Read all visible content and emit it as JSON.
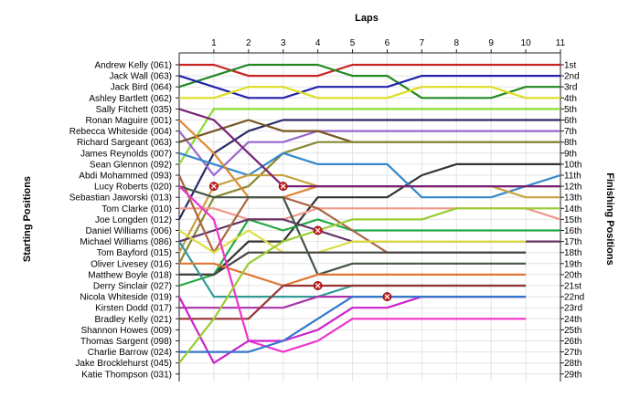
{
  "chart_data": {
    "type": "line",
    "top_axis_label": "Laps",
    "left_axis_label": "Starting Positions",
    "right_axis_label": "Finishing Positions",
    "laps": [
      1,
      2,
      3,
      4,
      5,
      6,
      7,
      8,
      9,
      10,
      11
    ],
    "x_range": [
      0,
      11
    ],
    "y_range": [
      1,
      29
    ],
    "grid": true,
    "starting_order": [
      "Andrew Kelly (061)",
      "Jack Wall (063)",
      "Jack Bird (064)",
      "Ashley Bartlett (062)",
      "Sally Fitchett (035)",
      "Ronan Maguire (001)",
      "Rebecca Whiteside (004)",
      "Richard Sargeant (063)",
      "James Reynolds (007)",
      "Sean Glennon (092)",
      "Abdi Mohammed (093)",
      "Lucy Roberts (020)",
      "Sebastian Jaworski (013)",
      "Tom Clarke (010)",
      "Joe Longden (012)",
      "Daniel Williams (006)",
      "Michael Williams (086)",
      "Tom Bayford (015)",
      "Oliver Livesey (016)",
      "Matthew Boyle (018)",
      "Derry Sinclair (027)",
      "Nicola Whiteside (019)",
      "Kirsten Dodd (017)",
      "Bradley Kelly (021)",
      "Shannon Howes (009)",
      "Thomas Sargent (098)",
      "Charlie Barrow (024)",
      "Jake Brocklehurst (045)",
      "Katie Thompson (031)"
    ],
    "finishing_labels": [
      "1st",
      "2nd",
      "3rd",
      "4th",
      "5th",
      "6th",
      "7th",
      "8th",
      "9th",
      "10th",
      "11th",
      "12th",
      "13th",
      "14th",
      "15th",
      "16th",
      "17th",
      "18th",
      "19th",
      "20th",
      "21st",
      "22nd",
      "23rd",
      "24th",
      "25th",
      "26th",
      "27th",
      "28th",
      "29th"
    ],
    "series": [
      {
        "color": "#cc2222",
        "positions": [
          1,
          1,
          2,
          2,
          2,
          1,
          1,
          1,
          1,
          1,
          1,
          1
        ]
      },
      {
        "color": "#228822",
        "positions": [
          3,
          2,
          1,
          1,
          1,
          2,
          2,
          4,
          4,
          4,
          3,
          3
        ]
      },
      {
        "color": "#2222aa",
        "positions": [
          2,
          3,
          4,
          4,
          3,
          3,
          3,
          2,
          2,
          2,
          2,
          2
        ]
      },
      {
        "color": "#dddd22",
        "positions": [
          4,
          4,
          3,
          3,
          4,
          4,
          4,
          3,
          3,
          3,
          4,
          4
        ]
      },
      {
        "color": "#88dd33",
        "positions": [
          10,
          5,
          5,
          5,
          5,
          5,
          5,
          5,
          5,
          5,
          5,
          5
        ]
      },
      {
        "color": "#2a2a66",
        "positions": [
          15,
          9,
          7,
          6,
          6,
          6,
          6,
          6,
          6,
          6,
          6,
          6
        ]
      },
      {
        "color": "#9966cc",
        "positions": [
          7,
          11,
          8,
          8,
          7,
          7,
          7,
          7,
          7,
          7,
          7,
          7
        ]
      },
      {
        "color": "#775522",
        "positions": [
          8,
          7,
          6,
          7,
          7,
          8,
          8,
          8,
          8,
          8,
          8,
          8
        ]
      },
      {
        "color": "#888833",
        "positions": [
          19,
          13,
          12,
          9,
          8,
          8,
          8,
          8,
          8,
          8,
          8,
          8
        ]
      },
      {
        "color": "#333333",
        "positions": [
          20,
          20,
          17,
          17,
          13,
          13,
          13,
          11,
          10,
          10,
          10,
          10
        ]
      },
      {
        "color": "#3388cc",
        "positions": [
          9,
          10,
          11,
          9,
          10,
          10,
          10,
          13,
          13,
          13,
          12,
          11
        ]
      },
      {
        "color": "#dd8833",
        "positions": [
          6,
          9,
          13,
          13,
          12,
          12,
          12,
          12,
          12,
          12,
          12,
          12
        ]
      },
      {
        "color": "#c8a040",
        "positions": [
          18,
          12,
          11,
          11,
          12,
          12,
          12,
          12,
          12,
          12,
          13,
          13
        ]
      },
      {
        "color": "#772277",
        "positions": [
          5,
          6,
          9,
          12,
          12,
          12,
          12,
          12,
          12,
          12,
          12,
          12
        ]
      },
      {
        "color": "#ee9988",
        "positions": [
          14,
          14,
          15,
          15,
          14,
          14,
          14,
          14,
          14,
          14,
          14,
          15
        ]
      },
      {
        "color": "#22aa44",
        "positions": [
          21,
          20,
          15,
          16,
          15,
          16,
          16,
          16,
          16,
          16,
          16,
          16
        ]
      },
      {
        "color": "#663366",
        "positions": [
          17,
          16,
          15,
          15,
          16,
          17,
          17,
          17,
          17,
          17,
          17,
          17
        ]
      },
      {
        "color": "#aa6644",
        "positions": [
          11,
          18,
          13,
          13,
          14,
          16,
          18,
          18,
          18,
          18,
          18
        ]
      },
      {
        "color": "#dddd44",
        "positions": [
          16,
          18,
          16,
          18,
          18,
          17,
          17,
          17,
          17,
          17,
          17
        ]
      },
      {
        "color": "#444444",
        "positions": [
          20,
          20,
          18,
          18,
          18,
          18,
          18,
          18,
          18,
          18,
          18
        ]
      },
      {
        "color": "#445544",
        "positions": [
          12,
          13,
          13,
          13,
          20,
          19,
          19,
          19,
          19,
          19,
          19
        ]
      },
      {
        "color": "#339999",
        "positions": [
          17,
          22,
          22,
          22,
          22,
          21,
          21,
          21,
          21,
          21,
          21
        ]
      },
      {
        "color": "#dd7733",
        "positions": [
          19,
          19,
          20,
          21,
          20,
          20,
          20,
          20,
          20,
          20,
          20
        ]
      },
      {
        "color": "#aa33aa",
        "positions": [
          23,
          23,
          23,
          23,
          22,
          22,
          22,
          22,
          22,
          22,
          22
        ]
      },
      {
        "color": "#993333",
        "positions": [
          24,
          24,
          24,
          21,
          21,
          21,
          21,
          21,
          21,
          21,
          21
        ]
      },
      {
        "color": "#ee33cc",
        "positions": [
          12,
          15,
          26,
          27,
          26,
          24,
          24,
          24,
          24,
          24,
          24
        ]
      },
      {
        "color": "#cc22cc",
        "positions": [
          22,
          28,
          26,
          26,
          25,
          23,
          23,
          22,
          22,
          22,
          22
        ]
      },
      {
        "color": "#3377cc",
        "positions": [
          27,
          27,
          27,
          26,
          24,
          22,
          22,
          22,
          22,
          22,
          22
        ]
      },
      {
        "color": "#99cc33",
        "positions": [
          28,
          24,
          19,
          17,
          16,
          15,
          15,
          15,
          14,
          14,
          14,
          14
        ]
      }
    ],
    "retirements": [
      {
        "lap": 1,
        "position": 12
      },
      {
        "lap": 3,
        "position": 12
      },
      {
        "lap": 4,
        "position": 16
      },
      {
        "lap": 4,
        "position": 21
      },
      {
        "lap": 6,
        "position": 22
      }
    ]
  }
}
